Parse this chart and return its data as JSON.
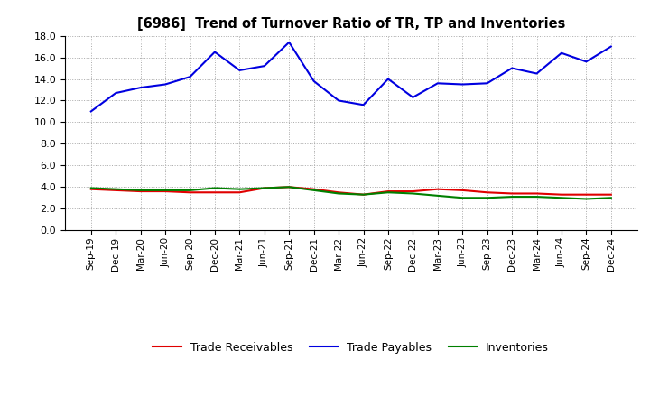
{
  "title": "[6986]  Trend of Turnover Ratio of TR, TP and Inventories",
  "x_labels": [
    "Sep-19",
    "Dec-19",
    "Mar-20",
    "Jun-20",
    "Sep-20",
    "Dec-20",
    "Mar-21",
    "Jun-21",
    "Sep-21",
    "Dec-21",
    "Mar-22",
    "Jun-22",
    "Sep-22",
    "Dec-22",
    "Mar-23",
    "Jun-23",
    "Sep-23",
    "Dec-23",
    "Mar-24",
    "Jun-24",
    "Sep-24",
    "Dec-24"
  ],
  "trade_receivables": [
    3.8,
    3.7,
    3.6,
    3.6,
    3.5,
    3.5,
    3.5,
    3.9,
    4.0,
    3.8,
    3.5,
    3.3,
    3.6,
    3.6,
    3.8,
    3.7,
    3.5,
    3.4,
    3.4,
    3.3,
    3.3,
    3.3
  ],
  "trade_payables": [
    11.0,
    12.7,
    13.2,
    13.5,
    14.2,
    16.5,
    14.8,
    15.2,
    17.4,
    13.8,
    12.0,
    11.6,
    14.0,
    12.3,
    13.6,
    13.5,
    13.6,
    15.0,
    14.5,
    16.4,
    15.6,
    17.0
  ],
  "inventories": [
    3.9,
    3.8,
    3.7,
    3.7,
    3.7,
    3.9,
    3.8,
    3.9,
    4.0,
    3.7,
    3.4,
    3.3,
    3.5,
    3.4,
    3.2,
    3.0,
    3.0,
    3.1,
    3.1,
    3.0,
    2.9,
    3.0
  ],
  "ylim": [
    0.0,
    18.0
  ],
  "yticks": [
    0.0,
    2.0,
    4.0,
    6.0,
    8.0,
    10.0,
    12.0,
    14.0,
    16.0,
    18.0
  ],
  "color_receivables": "#e00000",
  "color_payables": "#0000e0",
  "color_inventories": "#008000",
  "background_color": "#ffffff",
  "grid_color": "#aaaaaa",
  "legend_labels": [
    "Trade Receivables",
    "Trade Payables",
    "Inventories"
  ]
}
